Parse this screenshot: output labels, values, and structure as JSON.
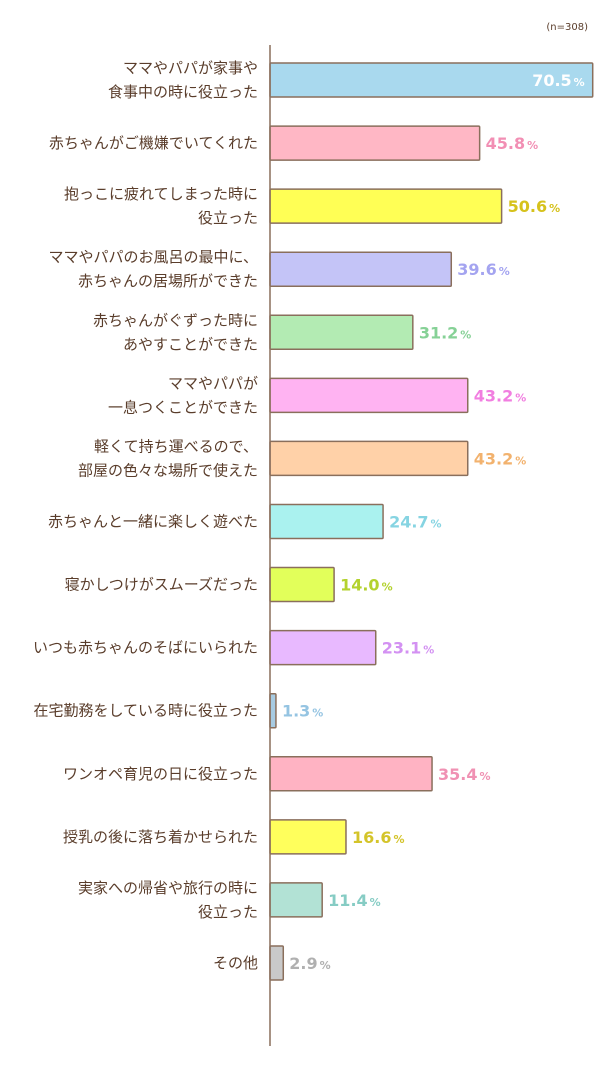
{
  "chart_data": {
    "type": "bar",
    "orientation": "horizontal",
    "note": "(n=308)",
    "unit": "%",
    "categories": [
      [
        "ママやパパが家事や",
        "食事中の時に役立った"
      ],
      [
        "赤ちゃんがご機嫌でいてくれた"
      ],
      [
        "抱っこに疲れてしまった時に",
        "役立った"
      ],
      [
        "ママやパパのお風呂の最中に、",
        "赤ちゃんの居場所ができた"
      ],
      [
        "赤ちゃんがぐずった時に",
        "あやすことができた"
      ],
      [
        "ママやパパが",
        "一息つくことができた"
      ],
      [
        "軽くて持ち運べるので、",
        "部屋の色々な場所で使えた"
      ],
      [
        "赤ちゃんと一緒に楽しく遊べた"
      ],
      [
        "寝かしつけがスムーズだった"
      ],
      [
        "いつも赤ちゃんのそばにいられた"
      ],
      [
        "在宅勤務をしている時に役立った"
      ],
      [
        "ワンオペ育児の日に役立った"
      ],
      [
        "授乳の後に落ち着かせられた"
      ],
      [
        "実家への帰省や旅行の時に",
        "役立った"
      ],
      [
        "その他"
      ]
    ],
    "values": [
      70.5,
      45.8,
      50.6,
      39.6,
      31.2,
      43.2,
      43.2,
      24.7,
      14.0,
      23.1,
      1.3,
      35.4,
      16.6,
      11.4,
      2.9
    ],
    "value_labels": [
      "70.5",
      "45.8",
      "50.6",
      "39.6",
      "31.2",
      "43.2",
      "43.2",
      "24.7",
      "14.0",
      "23.1",
      "1.3",
      "35.4",
      "16.6",
      "11.4",
      "2.9"
    ],
    "colors": [
      "#a9d9ee",
      "#ffb7c5",
      "#ffff55",
      "#c4c4f7",
      "#b3ebb3",
      "#ffb3f2",
      "#ffd1a8",
      "#aaf2ef",
      "#e2ff5a",
      "#e8b9ff",
      "#a7cbe2",
      "#ffb3c3",
      "#ffff5c",
      "#b2e2d5",
      "#c9c9c9"
    ],
    "label_colors": [
      "#ffffff",
      "#f28fb4",
      "#d6c21c",
      "#a4a4f0",
      "#86d196",
      "#f17ee0",
      "#f2b26e",
      "#86d4e2",
      "#b3d22e",
      "#d391f2",
      "#95c4e2",
      "#f091b3",
      "#d4c42a",
      "#86ccc4",
      "#b0b0b0"
    ],
    "xlim": [
      0,
      71
    ]
  }
}
